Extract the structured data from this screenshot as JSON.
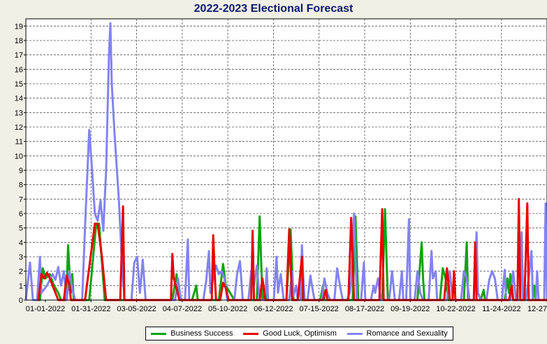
{
  "chart_data": {
    "type": "line",
    "title": "2022-2023 Electional Forecast",
    "xlabel": "",
    "ylabel": "",
    "ylim": [
      0,
      19.5
    ],
    "yticks": [
      0,
      1,
      2,
      3,
      4,
      5,
      6,
      7,
      8,
      9,
      10,
      11,
      12,
      13,
      14,
      15,
      16,
      17,
      18,
      19
    ],
    "x_tick_labels": [
      "01-01-2022",
      "01-31-2022",
      "03-05-2022",
      "04-07-2022",
      "05-10-2022",
      "06-12-2022",
      "07-15-2022",
      "08-17-2022",
      "09-19-2022",
      "10-22-2022",
      "11-24-2022",
      "12-27-2022"
    ],
    "x_range_days": [
      0,
      370
    ],
    "x_unit": "days since 01-01-2022",
    "grid": true,
    "legend_position": "bottom-center",
    "series": [
      {
        "name": "Business Success",
        "color": "#0fa30f",
        "points": [
          [
            10,
            0
          ],
          [
            12,
            2.2
          ],
          [
            14,
            1.5
          ],
          [
            17,
            1.8
          ],
          [
            20,
            1.0
          ],
          [
            23,
            0.5
          ],
          [
            25,
            0
          ],
          [
            28,
            0
          ],
          [
            29,
            1.0
          ],
          [
            30,
            3.8
          ],
          [
            31,
            2.0
          ],
          [
            32,
            0.5
          ],
          [
            33,
            1.8
          ],
          [
            34,
            0
          ],
          [
            45,
            0
          ],
          [
            50,
            5.3
          ],
          [
            52,
            5.3
          ],
          [
            56,
            0
          ],
          [
            104,
            0
          ],
          [
            107,
            1.8
          ],
          [
            109,
            0
          ],
          [
            118,
            0
          ],
          [
            121,
            1.0
          ],
          [
            122,
            0
          ],
          [
            137,
            0
          ],
          [
            140,
            2.5
          ],
          [
            142,
            1.0
          ],
          [
            145,
            0.5
          ],
          [
            148,
            0
          ],
          [
            164,
            0
          ],
          [
            166,
            5.8
          ],
          [
            168,
            0
          ],
          [
            169,
            0
          ],
          [
            170,
            0.8
          ],
          [
            171,
            0
          ],
          [
            185,
            0
          ],
          [
            188,
            4.9
          ],
          [
            190,
            0
          ],
          [
            193,
            0
          ],
          [
            195,
            1.2
          ],
          [
            196,
            0
          ],
          [
            209,
            0
          ],
          [
            211,
            1.0
          ],
          [
            212,
            0
          ],
          [
            232,
            0
          ],
          [
            234,
            5.8
          ],
          [
            236,
            0
          ],
          [
            253,
            0
          ],
          [
            255,
            6.3
          ],
          [
            257,
            0
          ],
          [
            278,
            0
          ],
          [
            281,
            4.0
          ],
          [
            282,
            1.5
          ],
          [
            283,
            0
          ],
          [
            294,
            0
          ],
          [
            296,
            2.2
          ],
          [
            298,
            1.5
          ],
          [
            300,
            0
          ],
          [
            311,
            0
          ],
          [
            313,
            4.0
          ],
          [
            314,
            0
          ],
          [
            323,
            0
          ],
          [
            325,
            0.7
          ],
          [
            326,
            0
          ],
          [
            340,
            0
          ],
          [
            342,
            1.5
          ],
          [
            343,
            0.5
          ],
          [
            344,
            1.8
          ],
          [
            345,
            1.0
          ],
          [
            346,
            0
          ],
          [
            360,
            0
          ],
          [
            361,
            1.0
          ],
          [
            362,
            0
          ],
          [
            370,
            0
          ]
        ]
      },
      {
        "name": "Good Luck, Optimism",
        "color": "#e80000",
        "points": [
          [
            9,
            0
          ],
          [
            11,
            1.8
          ],
          [
            13,
            1.5
          ],
          [
            15,
            1.9
          ],
          [
            17,
            1.5
          ],
          [
            19,
            1.0
          ],
          [
            21,
            0.5
          ],
          [
            23,
            0
          ],
          [
            27,
            0
          ],
          [
            29,
            1.7
          ],
          [
            31,
            1.0
          ],
          [
            32,
            0
          ],
          [
            42,
            0
          ],
          [
            46,
            3.0
          ],
          [
            49,
            5.3
          ],
          [
            51,
            5.3
          ],
          [
            54,
            3.0
          ],
          [
            57,
            0
          ],
          [
            67,
            0
          ],
          [
            69,
            6.5
          ],
          [
            70,
            0
          ],
          [
            103,
            0
          ],
          [
            104,
            3.2
          ],
          [
            105,
            1.5
          ],
          [
            107,
            0.8
          ],
          [
            109,
            0
          ],
          [
            132,
            0
          ],
          [
            133,
            4.5
          ],
          [
            134,
            2.0
          ],
          [
            135,
            0
          ],
          [
            138,
            0
          ],
          [
            140,
            1.2
          ],
          [
            142,
            0.8
          ],
          [
            144,
            0
          ],
          [
            160,
            0
          ],
          [
            161,
            4.8
          ],
          [
            162,
            0
          ],
          [
            166,
            0
          ],
          [
            168,
            1.5
          ],
          [
            170,
            0
          ],
          [
            185,
            0
          ],
          [
            187,
            4.9
          ],
          [
            189,
            0
          ],
          [
            193,
            0
          ],
          [
            196,
            3.0
          ],
          [
            197,
            0
          ],
          [
            211,
            0
          ],
          [
            213,
            0.7
          ],
          [
            214,
            0
          ],
          [
            229,
            0
          ],
          [
            231,
            5.7
          ],
          [
            233,
            0
          ],
          [
            251,
            0
          ],
          [
            253,
            6.3
          ],
          [
            254,
            0
          ],
          [
            297,
            0
          ],
          [
            299,
            2.2
          ],
          [
            300,
            1.2
          ],
          [
            301,
            0
          ],
          [
            303,
            0
          ],
          [
            304,
            2.0
          ],
          [
            305,
            0
          ],
          [
            318,
            0
          ],
          [
            319,
            4.0
          ],
          [
            320,
            0
          ],
          [
            343,
            0
          ],
          [
            345,
            1.0
          ],
          [
            346,
            0
          ],
          [
            349,
            0
          ],
          [
            350,
            7.0
          ],
          [
            351,
            0
          ],
          [
            354,
            0
          ],
          [
            356,
            6.7
          ],
          [
            357,
            0
          ],
          [
            370,
            0
          ]
        ]
      },
      {
        "name": "Romance and Sexuality",
        "color": "#8383f0",
        "points": [
          [
            0,
            0
          ],
          [
            3,
            2.6
          ],
          [
            5,
            0
          ],
          [
            8,
            0
          ],
          [
            10,
            3.0
          ],
          [
            11,
            0.5
          ],
          [
            15,
            1.0
          ],
          [
            19,
            1.8
          ],
          [
            21,
            1.4
          ],
          [
            23,
            2.3
          ],
          [
            25,
            1.0
          ],
          [
            27,
            2.0
          ],
          [
            29,
            0
          ],
          [
            31,
            2.0
          ],
          [
            33,
            0.8
          ],
          [
            35,
            0
          ],
          [
            40,
            0
          ],
          [
            42,
            5.0
          ],
          [
            45,
            11.8
          ],
          [
            47,
            9.0
          ],
          [
            49,
            6.0
          ],
          [
            51,
            5.5
          ],
          [
            53,
            6.9
          ],
          [
            55,
            4.8
          ],
          [
            57,
            9.0
          ],
          [
            59,
            17.0
          ],
          [
            60,
            19.2
          ],
          [
            61,
            15.0
          ],
          [
            63,
            11.5
          ],
          [
            66,
            7.0
          ],
          [
            68,
            3.0
          ],
          [
            70,
            0
          ],
          [
            75,
            0
          ],
          [
            77,
            2.6
          ],
          [
            79,
            3.0
          ],
          [
            81,
            0.5
          ],
          [
            83,
            2.8
          ],
          [
            85,
            0
          ],
          [
            106,
            0
          ],
          [
            108,
            1.5
          ],
          [
            110,
            0
          ],
          [
            113,
            0
          ],
          [
            115,
            4.2
          ],
          [
            116,
            0
          ],
          [
            126,
            0
          ],
          [
            128,
            1.3
          ],
          [
            130,
            3.4
          ],
          [
            131,
            0.5
          ],
          [
            133,
            1.5
          ],
          [
            135,
            2.4
          ],
          [
            137,
            1.8
          ],
          [
            139,
            2.0
          ],
          [
            141,
            1.5
          ],
          [
            143,
            0
          ],
          [
            148,
            0
          ],
          [
            150,
            1.8
          ],
          [
            152,
            2.7
          ],
          [
            154,
            0
          ],
          [
            158,
            0
          ],
          [
            160,
            2.0
          ],
          [
            162,
            1.0
          ],
          [
            164,
            2.4
          ],
          [
            166,
            0
          ],
          [
            170,
            0
          ],
          [
            171,
            2.2
          ],
          [
            172,
            0
          ],
          [
            176,
            0
          ],
          [
            178,
            3.0
          ],
          [
            179,
            0.5
          ],
          [
            181,
            1.8
          ],
          [
            183,
            0
          ],
          [
            187,
            0
          ],
          [
            189,
            2.0
          ],
          [
            190,
            0.3
          ],
          [
            192,
            1.0
          ],
          [
            193,
            0
          ],
          [
            195,
            0
          ],
          [
            196,
            3.8
          ],
          [
            197,
            1.5
          ],
          [
            198,
            0
          ],
          [
            200,
            0
          ],
          [
            202,
            1.7
          ],
          [
            204,
            0.5
          ],
          [
            205,
            0
          ],
          [
            210,
            0
          ],
          [
            212,
            1.5
          ],
          [
            214,
            0.5
          ],
          [
            216,
            0
          ],
          [
            219,
            0
          ],
          [
            221,
            2.2
          ],
          [
            223,
            1.0
          ],
          [
            225,
            0
          ],
          [
            228,
            0
          ],
          [
            230,
            0.5
          ],
          [
            231,
            1.2
          ],
          [
            233,
            6.0
          ],
          [
            234,
            3.0
          ],
          [
            235,
            0
          ],
          [
            238,
            0
          ],
          [
            240,
            2.6
          ],
          [
            241,
            0
          ],
          [
            245,
            0
          ],
          [
            247,
            1.0
          ],
          [
            248,
            0.5
          ],
          [
            250,
            1.5
          ],
          [
            252,
            0
          ],
          [
            258,
            0
          ],
          [
            260,
            2.0
          ],
          [
            262,
            0
          ],
          [
            265,
            0
          ],
          [
            267,
            2.0
          ],
          [
            268,
            0
          ],
          [
            270,
            0
          ],
          [
            272,
            5.6
          ],
          [
            273,
            0
          ],
          [
            276,
            0
          ],
          [
            278,
            2.0
          ],
          [
            280,
            0.5
          ],
          [
            282,
            0
          ],
          [
            286,
            0
          ],
          [
            288,
            3.4
          ],
          [
            289,
            1.5
          ],
          [
            291,
            2.0
          ],
          [
            292,
            0
          ],
          [
            299,
            0
          ],
          [
            301,
            2.0
          ],
          [
            303,
            0
          ],
          [
            309,
            0
          ],
          [
            311,
            2.0
          ],
          [
            313,
            1.5
          ],
          [
            315,
            0
          ],
          [
            318,
            0
          ],
          [
            320,
            4.7
          ],
          [
            321,
            0.5
          ],
          [
            323,
            0
          ],
          [
            327,
            0
          ],
          [
            329,
            1.4
          ],
          [
            331,
            2.0
          ],
          [
            333,
            1.5
          ],
          [
            335,
            0
          ],
          [
            338,
            0
          ],
          [
            340,
            2.1
          ],
          [
            341,
            0
          ],
          [
            344,
            0
          ],
          [
            346,
            2.0
          ],
          [
            348,
            0
          ],
          [
            351,
            0
          ],
          [
            352,
            4.7
          ],
          [
            353,
            0
          ],
          [
            355,
            0
          ],
          [
            357,
            1.5
          ],
          [
            359,
            3.4
          ],
          [
            360,
            0
          ],
          [
            362,
            0
          ],
          [
            363,
            2.0
          ],
          [
            364,
            0
          ],
          [
            368,
            0
          ],
          [
            369,
            6.7
          ],
          [
            370,
            0
          ]
        ]
      }
    ]
  }
}
